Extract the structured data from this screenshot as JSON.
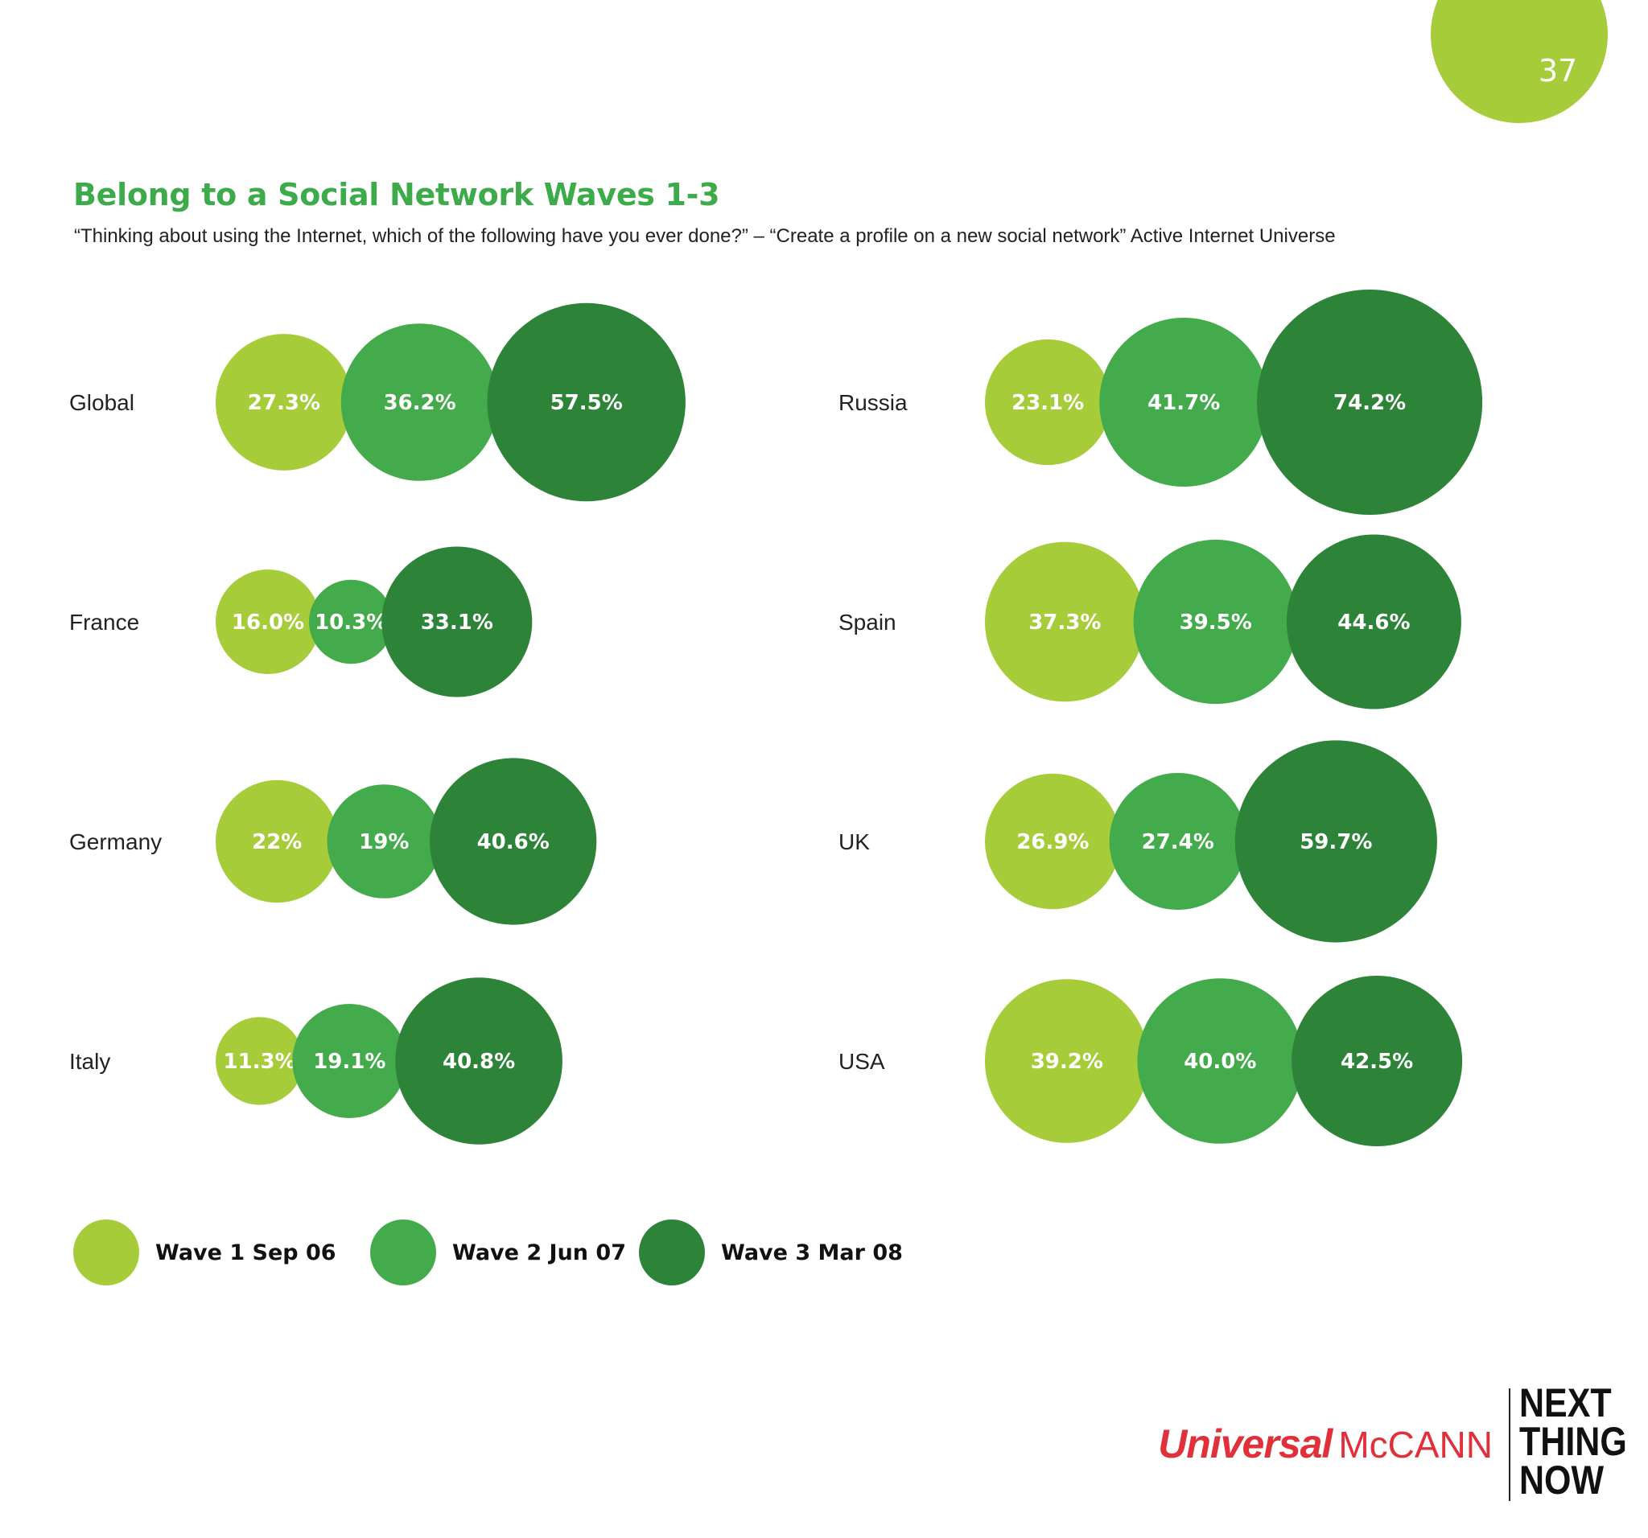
{
  "page": {
    "number": "37",
    "badge_color": "#a6cc3a"
  },
  "header": {
    "title": "Belong to a Social Network Waves 1-3",
    "subtitle": "“Thinking about using the Internet, which of the following have you ever done?” – “Create a profile on a new social network” Active Internet Universe"
  },
  "chart_data": {
    "type": "bubble",
    "title": "Belong to a Social Network Waves 1-3",
    "value_unit": "%",
    "series": [
      {
        "name": "Wave 1 Sep 06",
        "color": "#a6cc3a"
      },
      {
        "name": "Wave 2 Jun 07",
        "color": "#43ab4b"
      },
      {
        "name": "Wave 3 Mar 08",
        "color": "#2d8338"
      }
    ],
    "groups": [
      {
        "country": "Global",
        "values": [
          27.3,
          36.2,
          57.5
        ],
        "labels": [
          "27.3%",
          "36.2%",
          "57.5%"
        ]
      },
      {
        "country": "France",
        "values": [
          16.0,
          10.3,
          33.1
        ],
        "labels": [
          "16.0%",
          "10.3%",
          "33.1%"
        ]
      },
      {
        "country": "Germany",
        "values": [
          22,
          19,
          40.6
        ],
        "labels": [
          "22%",
          "19%",
          "40.6%"
        ]
      },
      {
        "country": "Italy",
        "values": [
          11.3,
          19.1,
          40.8
        ],
        "labels": [
          "11.3%",
          "19.1%",
          "40.8%"
        ]
      },
      {
        "country": "Russia",
        "values": [
          23.1,
          41.7,
          74.2
        ],
        "labels": [
          "23.1%",
          "41.7%",
          "74.2%"
        ]
      },
      {
        "country": "Spain",
        "values": [
          37.3,
          39.5,
          44.6
        ],
        "labels": [
          "37.3%",
          "39.5%",
          "44.6%"
        ]
      },
      {
        "country": "UK",
        "values": [
          26.9,
          27.4,
          59.7
        ],
        "labels": [
          "26.9%",
          "27.4%",
          "59.7%"
        ]
      },
      {
        "country": "USA",
        "values": [
          39.2,
          40.0,
          42.5
        ],
        "labels": [
          "39.2%",
          "40.0%",
          "42.5%"
        ]
      }
    ],
    "legend_position": "bottom-left"
  },
  "legend": {
    "items": [
      {
        "label": "Wave 1 Sep 06",
        "color": "#a6cc3a"
      },
      {
        "label": "Wave 2 Jun 07",
        "color": "#43ab4b"
      },
      {
        "label": "Wave 3 Mar 08",
        "color": "#2d8338"
      }
    ]
  },
  "brand": {
    "universal": "Universal",
    "mccann": "McCANN",
    "tagline": [
      "NEXT",
      "THING",
      "NOW"
    ]
  }
}
